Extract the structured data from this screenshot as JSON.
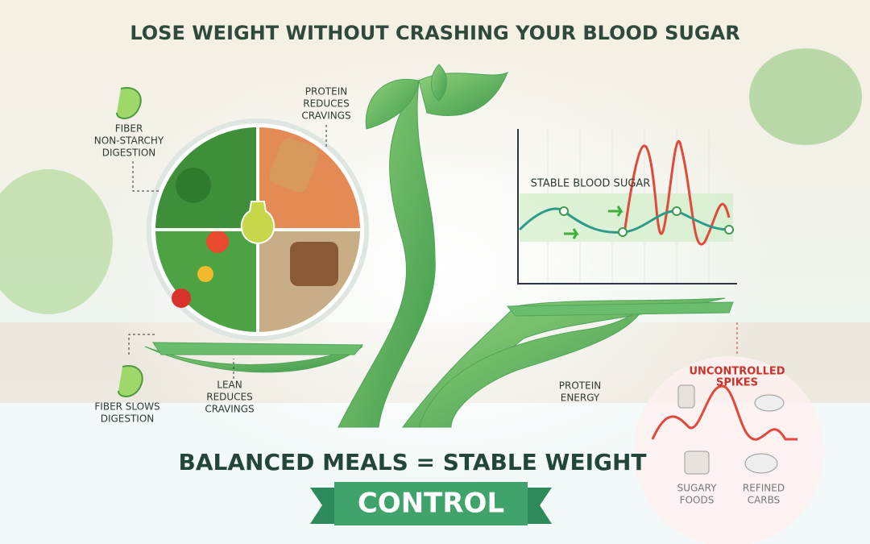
{
  "header": {
    "title": "LOSE WEIGHT WITHOUT CRASHING YOUR BLOOD SUGAR"
  },
  "labels": {
    "fiber_top": [
      "FIBER",
      "NON-STARCHY",
      "DIGESTION"
    ],
    "protein_top": [
      "PROTEIN",
      "REDUCES",
      "CRAVINGS"
    ],
    "fiber_bottom": [
      "FIBER SLOWS",
      "DIGESTION"
    ],
    "lean": [
      "LEAN",
      "REDUCES",
      "CRAVINGS"
    ],
    "protein_energy": [
      "PROTEIN",
      "ENERGY"
    ]
  },
  "graph": {
    "label": "STABLE BLOOD SUGAR"
  },
  "spikes": {
    "title": [
      "UNCONTROLLED",
      "SPIKES"
    ],
    "items": [
      [
        "SUGARY",
        "FOODS"
      ],
      [
        "REFINED",
        "CARBS"
      ]
    ]
  },
  "footer": {
    "headline": "BALANCED MEALS = STABLE WEIGHT",
    "banner": "CONTROL"
  }
}
